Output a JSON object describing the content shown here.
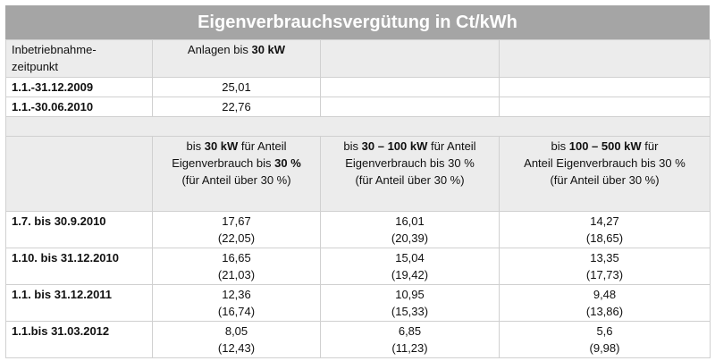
{
  "title": "Eigenverbrauchsvergütung in Ct/kWh",
  "table1": {
    "header": {
      "label": [
        "Inbetriebnahme-",
        "zeitpunkt"
      ],
      "column": [
        "Anlagen bis ",
        "30 kW"
      ]
    },
    "rows": [
      {
        "label": "1.1.-31.12.2009",
        "value": "25,01"
      },
      {
        "label": "1.1.-30.06.2010",
        "value": "22,76"
      }
    ]
  },
  "table2": {
    "headers": [
      [
        "bis ",
        "30 kW",
        " für Anteil",
        "Eigenverbrauch bis ",
        "30 %",
        "(für Anteil über 30 %)"
      ],
      [
        "bis ",
        "30 – 100 kW",
        " für Anteil",
        "Eigenverbrauch bis 30 %",
        "(für Anteil über 30 %)"
      ],
      [
        "bis ",
        "100 – 500 kW",
        " für",
        "Anteil Eigenverbrauch bis 30 %",
        "(für Anteil über 30 %)"
      ]
    ],
    "rows": [
      {
        "label": "1.7. bis 30.9.2010",
        "values": [
          [
            "17,67",
            "(22,05)"
          ],
          [
            "16,01",
            "(20,39)"
          ],
          [
            "14,27",
            "(18,65)"
          ]
        ]
      },
      {
        "label": "1.10. bis 31.12.2010",
        "values": [
          [
            "16,65",
            "(21,03)"
          ],
          [
            "15,04",
            "(19,42)"
          ],
          [
            "13,35",
            "(17,73)"
          ]
        ]
      },
      {
        "label": "1.1. bis 31.12.2011",
        "values": [
          [
            "12,36",
            "(16,74)"
          ],
          [
            "10,95",
            "(15,33)"
          ],
          [
            "9,48",
            "(13,86)"
          ]
        ]
      },
      {
        "label": "1.1.bis 31.03.2012",
        "values": [
          [
            "8,05",
            "(12,43)"
          ],
          [
            "6,85",
            "(11,23)"
          ],
          [
            "5,6",
            "(9,98)"
          ]
        ]
      }
    ]
  }
}
